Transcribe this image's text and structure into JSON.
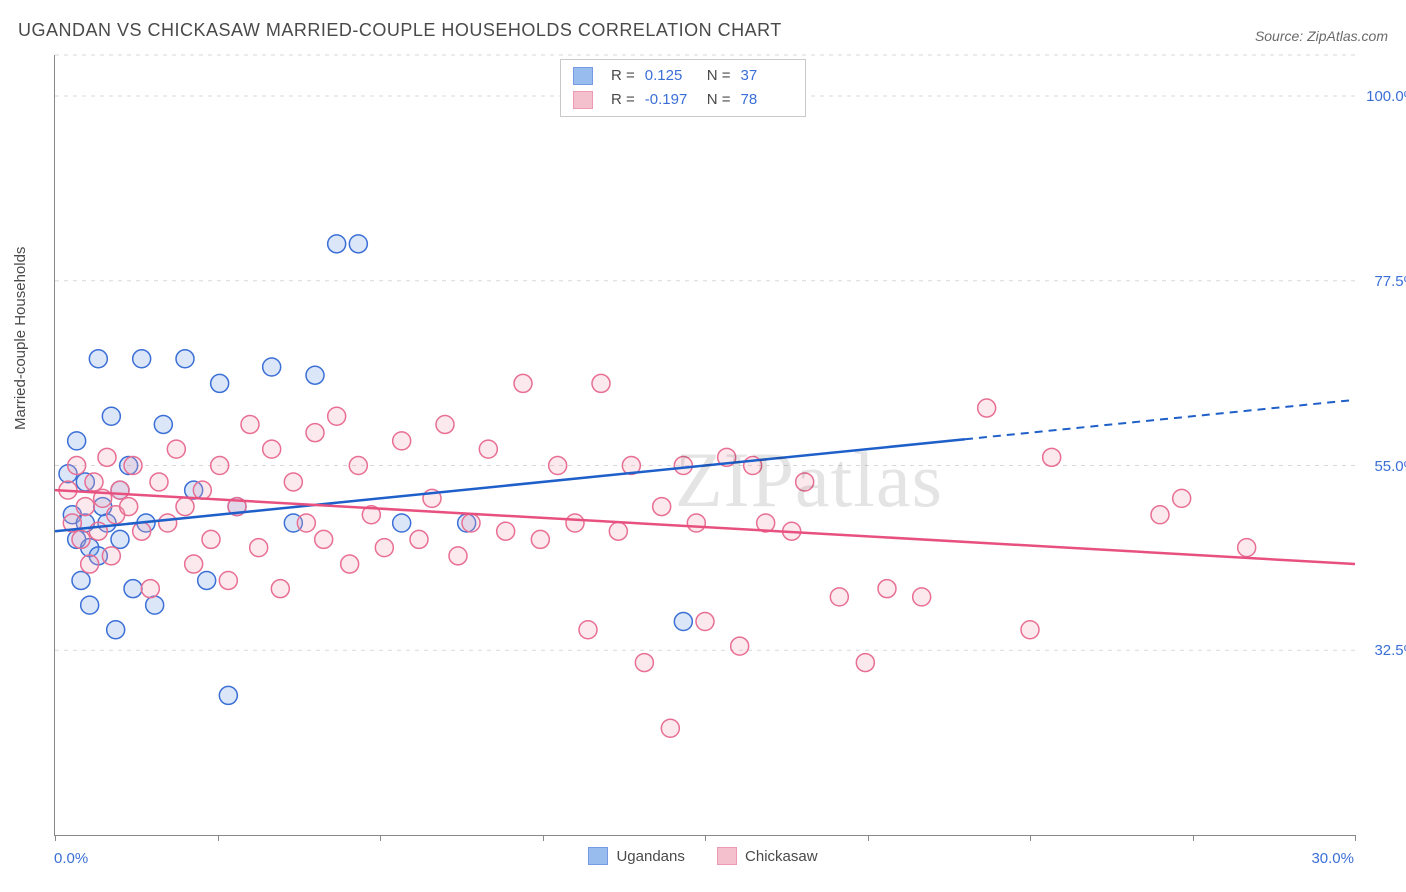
{
  "title": "UGANDAN VS CHICKASAW MARRIED-COUPLE HOUSEHOLDS CORRELATION CHART",
  "source": "Source: ZipAtlas.com",
  "watermark": "ZIPatlas",
  "ylabel": "Married-couple Households",
  "chart": {
    "type": "scatter",
    "xlim": [
      0,
      30
    ],
    "ylim": [
      10,
      105
    ],
    "xticks": [
      0,
      3.75,
      7.5,
      11.25,
      15,
      18.75,
      22.5,
      26.25,
      30
    ],
    "background_color": "#ffffff",
    "grid_color": "#d8d8d8",
    "ytick_labels": [
      "100.0%",
      "77.5%",
      "55.0%",
      "32.5%"
    ],
    "ytick_values": [
      100,
      77.5,
      55,
      32.5
    ],
    "x_min_label": "0.0%",
    "x_max_label": "30.0%",
    "marker_radius": 9,
    "marker_fill_opacity": 0.25,
    "marker_stroke_width": 1.5,
    "line_width": 2.5
  },
  "series": [
    {
      "name": "Ugandans",
      "color": "#6fa0e8",
      "stroke": "#3b6fd6",
      "line_color": "#1f5fc9",
      "R": "0.125",
      "N": "37",
      "trend": {
        "y_at_xmin": 47,
        "y_at_xmax": 63,
        "solid_until_x": 21
      },
      "points": [
        [
          0.3,
          54
        ],
        [
          0.4,
          49
        ],
        [
          0.5,
          46
        ],
        [
          0.5,
          58
        ],
        [
          0.6,
          41
        ],
        [
          0.7,
          53
        ],
        [
          0.7,
          48
        ],
        [
          0.8,
          45
        ],
        [
          0.8,
          38
        ],
        [
          1.0,
          68
        ],
        [
          1.0,
          44
        ],
        [
          1.1,
          50
        ],
        [
          1.2,
          48
        ],
        [
          1.3,
          61
        ],
        [
          1.4,
          35
        ],
        [
          1.5,
          46
        ],
        [
          1.5,
          52
        ],
        [
          1.7,
          55
        ],
        [
          1.8,
          40
        ],
        [
          2.0,
          68
        ],
        [
          2.1,
          48
        ],
        [
          2.3,
          38
        ],
        [
          2.5,
          60
        ],
        [
          3.0,
          68
        ],
        [
          3.2,
          52
        ],
        [
          3.5,
          41
        ],
        [
          3.8,
          65
        ],
        [
          4.0,
          27
        ],
        [
          4.2,
          50
        ],
        [
          5.0,
          67
        ],
        [
          5.5,
          48
        ],
        [
          6.0,
          66
        ],
        [
          6.5,
          82
        ],
        [
          7.0,
          82
        ],
        [
          8.0,
          48
        ],
        [
          9.5,
          48
        ],
        [
          14.5,
          36
        ]
      ]
    },
    {
      "name": "Chickasaw",
      "color": "#f2a6b8",
      "stroke": "#e86f93",
      "line_color": "#e8517f",
      "R": "-0.197",
      "N": "78",
      "trend": {
        "y_at_xmin": 52,
        "y_at_xmax": 43,
        "solid_until_x": 30
      },
      "points": [
        [
          0.3,
          52
        ],
        [
          0.4,
          48
        ],
        [
          0.5,
          55
        ],
        [
          0.6,
          46
        ],
        [
          0.7,
          50
        ],
        [
          0.8,
          43
        ],
        [
          0.9,
          53
        ],
        [
          1.0,
          47
        ],
        [
          1.1,
          51
        ],
        [
          1.2,
          56
        ],
        [
          1.3,
          44
        ],
        [
          1.4,
          49
        ],
        [
          1.5,
          52
        ],
        [
          1.7,
          50
        ],
        [
          1.8,
          55
        ],
        [
          2.0,
          47
        ],
        [
          2.2,
          40
        ],
        [
          2.4,
          53
        ],
        [
          2.6,
          48
        ],
        [
          2.8,
          57
        ],
        [
          3.0,
          50
        ],
        [
          3.2,
          43
        ],
        [
          3.4,
          52
        ],
        [
          3.6,
          46
        ],
        [
          3.8,
          55
        ],
        [
          4.0,
          41
        ],
        [
          4.2,
          50
        ],
        [
          4.5,
          60
        ],
        [
          4.7,
          45
        ],
        [
          5.0,
          57
        ],
        [
          5.2,
          40
        ],
        [
          5.5,
          53
        ],
        [
          5.8,
          48
        ],
        [
          6.0,
          59
        ],
        [
          6.2,
          46
        ],
        [
          6.5,
          61
        ],
        [
          6.8,
          43
        ],
        [
          7.0,
          55
        ],
        [
          7.3,
          49
        ],
        [
          7.6,
          45
        ],
        [
          8.0,
          58
        ],
        [
          8.4,
          46
        ],
        [
          8.7,
          51
        ],
        [
          9.0,
          60
        ],
        [
          9.3,
          44
        ],
        [
          9.6,
          48
        ],
        [
          10.0,
          57
        ],
        [
          10.4,
          47
        ],
        [
          10.8,
          65
        ],
        [
          11.2,
          46
        ],
        [
          11.6,
          55
        ],
        [
          12.0,
          48
        ],
        [
          12.3,
          35
        ],
        [
          12.6,
          65
        ],
        [
          13.0,
          47
        ],
        [
          13.3,
          55
        ],
        [
          13.6,
          31
        ],
        [
          14.0,
          50
        ],
        [
          14.2,
          23
        ],
        [
          14.5,
          55
        ],
        [
          14.8,
          48
        ],
        [
          15.0,
          36
        ],
        [
          15.5,
          56
        ],
        [
          15.8,
          33
        ],
        [
          16.1,
          55
        ],
        [
          16.4,
          48
        ],
        [
          17.0,
          47
        ],
        [
          17.3,
          53
        ],
        [
          18.1,
          39
        ],
        [
          18.7,
          31
        ],
        [
          19.2,
          40
        ],
        [
          20.0,
          39
        ],
        [
          21.5,
          62
        ],
        [
          22.5,
          35
        ],
        [
          23.0,
          56
        ],
        [
          25.5,
          49
        ],
        [
          26.0,
          51
        ],
        [
          27.5,
          45
        ]
      ]
    }
  ],
  "bottom_legend": [
    "Ugandans",
    "Chickasaw"
  ],
  "stats_labels": {
    "R": "R  =",
    "N": "N  ="
  }
}
